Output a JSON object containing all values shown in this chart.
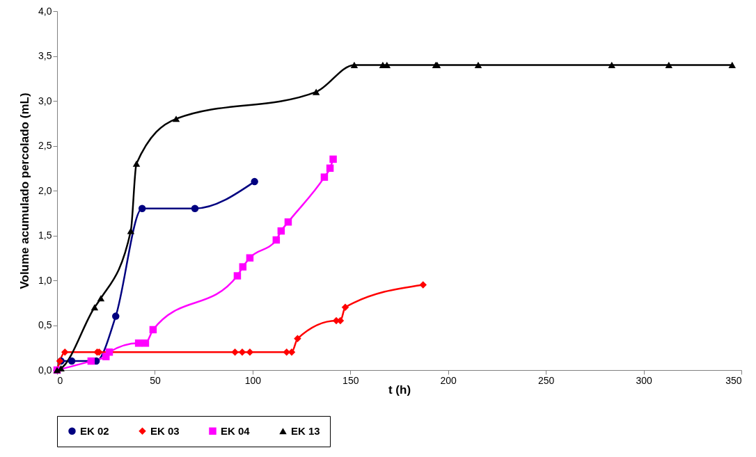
{
  "chart_data": {
    "type": "line",
    "xlabel": "t (h)",
    "ylabel": "Volume acumulado percolado (mL)",
    "xlim": [
      0,
      350
    ],
    "xticks": [
      0,
      50,
      100,
      150,
      200,
      250,
      300,
      350
    ],
    "ylim": [
      0,
      4
    ],
    "yticks": [
      {
        "value": 0,
        "label": "0,0"
      },
      {
        "value": 0.5,
        "label": "0,5"
      },
      {
        "value": 1,
        "label": "1,0"
      },
      {
        "value": 1.5,
        "label": "1,5"
      },
      {
        "value": 2,
        "label": "2,0"
      },
      {
        "value": 2.5,
        "label": "2,5"
      },
      {
        "value": 3,
        "label": "3,0"
      },
      {
        "value": 3.5,
        "label": "3,5"
      },
      {
        "value": 4,
        "label": "4,0"
      }
    ],
    "grid": false,
    "legend": "bottom",
    "series": [
      {
        "name": "EK 02",
        "color": "#000080",
        "marker": "circle",
        "x": [
          0,
          2,
          7.5,
          20,
          30,
          43.5,
          70.5,
          101
        ],
        "values": [
          0,
          0.1,
          0.1,
          0.1,
          0.6,
          1.8,
          1.8,
          2.1
        ]
      },
      {
        "name": "EK 03",
        "color": "#ff0000",
        "marker": "diamond",
        "x": [
          0,
          1.4,
          4,
          20.5,
          21.5,
          91,
          94.7,
          98.6,
          117.4,
          120,
          123,
          142.8,
          144.9,
          147.4,
          187.2
        ],
        "values": [
          0,
          0.1,
          0.2,
          0.2,
          0.2,
          0.2,
          0.2,
          0.2,
          0.2,
          0.2,
          0.35,
          0.55,
          0.55,
          0.7,
          0.95
        ]
      },
      {
        "name": "EK 04",
        "color": "#ff00ff",
        "marker": "square",
        "x": [
          0,
          17.4,
          25,
          26.7,
          41.7,
          45.2,
          49.1,
          92.2,
          95,
          98.6,
          112.1,
          114.6,
          118.2,
          136.7,
          139.6,
          141.2
        ],
        "values": [
          0,
          0.1,
          0.15,
          0.2,
          0.3,
          0.3,
          0.45,
          1.05,
          1.15,
          1.25,
          1.45,
          1.55,
          1.65,
          2.15,
          2.25,
          2.35
        ]
      },
      {
        "name": "EK 13",
        "color": "#000000",
        "marker": "triangle",
        "x": [
          0,
          2,
          19.2,
          22.4,
          37.7,
          40.6,
          60.9,
          132.5,
          152,
          166.6,
          168.7,
          193.7,
          194.4,
          215.4,
          283.7,
          312.9,
          345.3
        ],
        "values": [
          0,
          0.02,
          0.7,
          0.8,
          1.55,
          2.3,
          2.8,
          3.1,
          3.4,
          3.4,
          3.4,
          3.4,
          3.4,
          3.4,
          3.4,
          3.4,
          3.4
        ]
      }
    ]
  }
}
